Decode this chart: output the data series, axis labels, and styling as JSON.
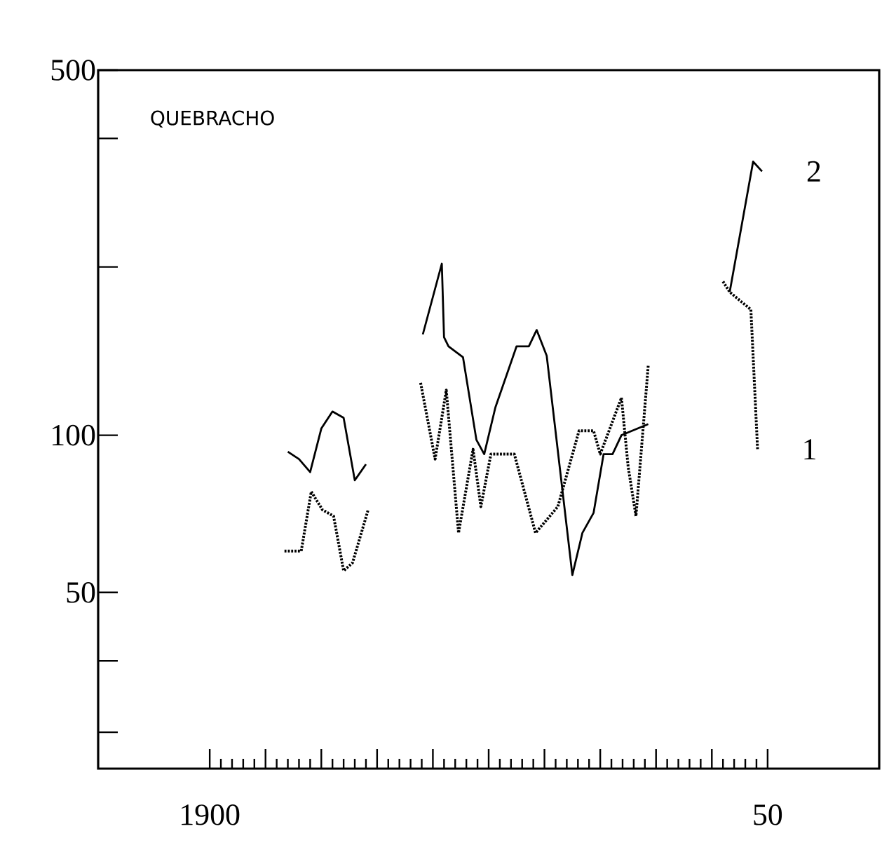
{
  "chart_data": {
    "type": "line",
    "title": "QUEBRACHO",
    "log": "y",
    "xlim": [
      1890,
      1960
    ],
    "ylim": [
      23,
      500
    ],
    "xticks": [
      1900,
      {
        "value": 1905,
        "label": null
      },
      {
        "value": 1910,
        "label": null
      },
      {
        "value": 1915,
        "label": null
      },
      {
        "value": 1920,
        "label": null
      },
      {
        "value": 1925,
        "label": null
      },
      {
        "value": 1930,
        "label": null
      },
      {
        "value": 1935,
        "label": null
      },
      {
        "value": 1940,
        "label": null
      },
      {
        "value": 1945,
        "label": null
      },
      {
        "value": 1950,
        "label": "50"
      }
    ],
    "yticks": [
      {
        "value": 27,
        "label": null
      },
      {
        "value": 37,
        "label": null
      },
      50,
      100,
      {
        "value": 210,
        "label": null
      },
      {
        "value": 370,
        "label": null
      },
      500
    ],
    "grid": false,
    "marker": "none",
    "series": [
      {
        "name": "2",
        "color": "#000000",
        "line_style": "solid",
        "x": [
          1907,
          1908,
          1909,
          1910,
          1911,
          1912,
          1913,
          1914,
          1916,
          1919.1,
          1920.8,
          1921,
          1921.4,
          1922.7,
          1923.9,
          1924.6,
          1925.6,
          1927.5,
          1928.6,
          1929.3,
          1930.2,
          1932.5,
          1933.4,
          1934.4,
          1935.3,
          1936.1,
          1936.9,
          1939.3,
          1943,
          1946.6,
          1948.7,
          1949.5
        ],
        "values": [
          93,
          90,
          85,
          103,
          111,
          108,
          82,
          88,
          null,
          156,
          213,
          154,
          148,
          141,
          98,
          92,
          113,
          148,
          148,
          159,
          142,
          54,
          65,
          71,
          92,
          92,
          100,
          105,
          null,
          188,
          334,
          320
        ]
      },
      {
        "name": "1",
        "color": "#000000",
        "line_style": "dotted",
        "x": [
          1906.7,
          1908.2,
          1909.1,
          1910.1,
          1911.1,
          1912,
          1912.8,
          1914.2,
          1916,
          1918.9,
          1920.2,
          1921.2,
          1922.3,
          1923.6,
          1924.3,
          1925.2,
          1927.3,
          1929.2,
          1931.2,
          1933.1,
          1934.4,
          1935,
          1936.9,
          1937.5,
          1938.2,
          1939.3,
          1943,
          1946,
          1946.6,
          1948.5,
          1949.1
        ],
        "values": [
          60,
          60,
          78,
          72,
          70,
          55,
          57,
          72,
          null,
          126,
          90,
          122,
          65,
          94,
          73,
          92,
          92,
          65,
          73,
          102,
          102,
          92,
          118,
          87,
          70,
          136,
          null,
          197,
          188,
          174,
          94
        ]
      }
    ]
  }
}
